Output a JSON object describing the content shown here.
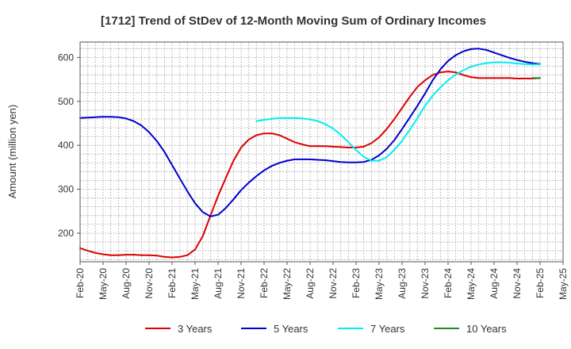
{
  "chart_data": {
    "type": "line",
    "title": "[1712]  Trend of StDev of 12-Month Moving Sum of Ordinary Incomes",
    "xlabel": "",
    "ylabel": "Amount (million yen)",
    "ylim": [
      135,
      635
    ],
    "yticks": [
      200,
      300,
      400,
      500,
      600
    ],
    "x_categories": [
      "Feb-20",
      "May-20",
      "Aug-20",
      "Nov-20",
      "Feb-21",
      "May-21",
      "Aug-21",
      "Nov-21",
      "Feb-22",
      "May-22",
      "Aug-22",
      "Nov-22",
      "Feb-23",
      "May-23",
      "Aug-23",
      "Nov-23",
      "Feb-24",
      "May-24",
      "Aug-24",
      "Nov-24",
      "Feb-25",
      "May-25"
    ],
    "grid": true,
    "legend_position": "bottom",
    "series": [
      {
        "name": "3 Years",
        "color": "#dd0000",
        "x": [
          0,
          0.33,
          0.67,
          1,
          1.33,
          1.67,
          2,
          2.33,
          2.67,
          3,
          3.33,
          3.67,
          4,
          4.33,
          4.67,
          5,
          5.33,
          5.67,
          6,
          6.33,
          6.67,
          7,
          7.33,
          7.67,
          8,
          8.33,
          8.67,
          9,
          9.33,
          9.67,
          10,
          10.33,
          10.67,
          11,
          11.33,
          11.67,
          12,
          12.33,
          12.67,
          13,
          13.33,
          13.67,
          14,
          14.33,
          14.67,
          15,
          15.33,
          15.67,
          16,
          16.33,
          16.67,
          17,
          17.33,
          17.67,
          18,
          18.33,
          18.67,
          19,
          19.33,
          19.67,
          20
        ],
        "values": [
          166,
          160,
          155,
          152,
          150,
          150,
          151,
          151,
          150,
          150,
          149,
          146,
          145,
          146,
          150,
          163,
          193,
          240,
          285,
          325,
          365,
          395,
          413,
          423,
          427,
          427,
          423,
          415,
          407,
          402,
          398,
          398,
          398,
          397,
          396,
          395,
          395,
          397,
          405,
          418,
          437,
          460,
          485,
          510,
          533,
          548,
          560,
          566,
          568,
          566,
          560,
          555,
          553,
          553,
          553,
          553,
          553,
          552,
          552,
          552,
          553
        ]
      },
      {
        "name": "5 Years",
        "color": "#0000cc",
        "x": [
          0,
          0.33,
          0.67,
          1,
          1.33,
          1.67,
          2,
          2.33,
          2.67,
          3,
          3.33,
          3.67,
          4,
          4.33,
          4.67,
          5,
          5.33,
          5.67,
          6,
          6.33,
          6.67,
          7,
          7.33,
          7.67,
          8,
          8.33,
          8.67,
          9,
          9.33,
          9.67,
          10,
          10.33,
          10.67,
          11,
          11.33,
          11.67,
          12,
          12.33,
          12.67,
          13,
          13.33,
          13.67,
          14,
          14.33,
          14.67,
          15,
          15.33,
          15.67,
          16,
          16.33,
          16.67,
          17,
          17.33,
          17.67,
          18,
          18.33,
          18.67,
          19,
          19.33,
          19.67,
          20
        ],
        "values": [
          462,
          463,
          464,
          465,
          465,
          464,
          461,
          455,
          445,
          430,
          410,
          385,
          355,
          325,
          295,
          268,
          248,
          238,
          242,
          257,
          277,
          298,
          315,
          330,
          343,
          353,
          360,
          365,
          368,
          368,
          368,
          367,
          366,
          364,
          362,
          361,
          361,
          362,
          367,
          377,
          392,
          412,
          437,
          463,
          490,
          518,
          548,
          573,
          592,
          605,
          614,
          619,
          620,
          617,
          611,
          605,
          599,
          594,
          590,
          587,
          585
        ]
      },
      {
        "name": "7 Years",
        "color": "#00eeee",
        "x": [
          7.67,
          8,
          8.33,
          8.67,
          9,
          9.33,
          9.67,
          10,
          10.33,
          10.67,
          11,
          11.33,
          11.67,
          12,
          12.33,
          12.67,
          13,
          13.33,
          13.67,
          14,
          14.33,
          14.67,
          15,
          15.33,
          15.67,
          16,
          16.33,
          16.67,
          17,
          17.33,
          17.67,
          18,
          18.33,
          18.67,
          19,
          19.33,
          19.67,
          20
        ],
        "values": [
          455,
          458,
          460,
          462,
          462,
          462,
          461,
          459,
          455,
          448,
          438,
          424,
          407,
          389,
          374,
          365,
          365,
          373,
          390,
          410,
          435,
          462,
          490,
          513,
          532,
          548,
          561,
          571,
          579,
          584,
          587,
          589,
          589,
          588,
          586,
          585,
          584,
          584
        ]
      },
      {
        "name": "10 Years",
        "color": "#228822",
        "x": [
          19.67,
          20
        ],
        "values": [
          553,
          553
        ]
      }
    ]
  }
}
